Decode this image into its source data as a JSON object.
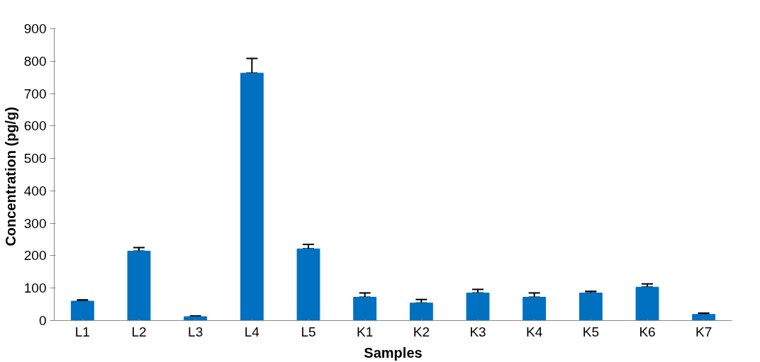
{
  "chart_data": {
    "type": "bar",
    "xlabel": "Samples",
    "ylabel": "Concentration  (pg/g)",
    "categories": [
      "L1",
      "L2",
      "L3",
      "L4",
      "L5",
      "K1",
      "K2",
      "K3",
      "K4",
      "K5",
      "K6",
      "K7"
    ],
    "values": [
      60,
      214,
      12,
      763,
      221,
      72,
      54,
      85,
      72,
      85,
      103,
      19
    ],
    "errors": [
      [
        60,
        64
      ],
      [
        214,
        225
      ],
      [
        12,
        14
      ],
      [
        763,
        808
      ],
      [
        221,
        235
      ],
      [
        72,
        85
      ],
      [
        54,
        65
      ],
      [
        85,
        96
      ],
      [
        72,
        85
      ],
      [
        85,
        90
      ],
      [
        103,
        113
      ],
      [
        19,
        23
      ]
    ],
    "color": "#0070c0",
    "ylim": [
      0,
      900
    ],
    "yticks": [
      0,
      100,
      200,
      300,
      400,
      500,
      600,
      700,
      800,
      900
    ],
    "grid": false
  }
}
